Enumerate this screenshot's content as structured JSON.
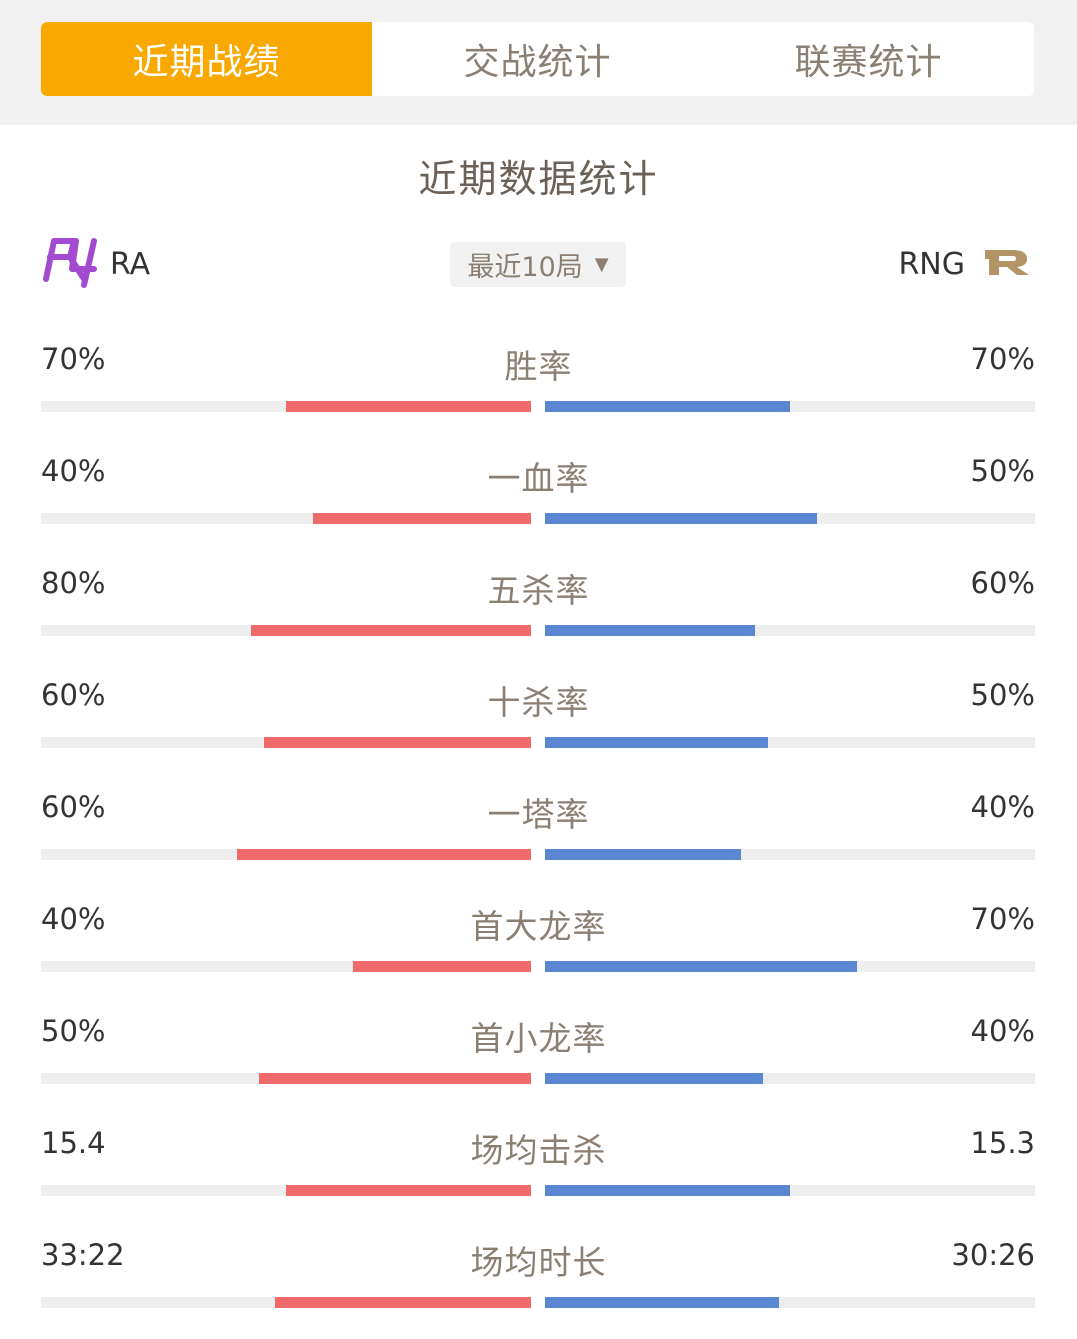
{
  "tabs": [
    {
      "label": "近期战绩",
      "active": true
    },
    {
      "label": "交战统计",
      "active": false
    },
    {
      "label": "联赛统计",
      "active": false
    }
  ],
  "section_title": "近期数据统计",
  "team_left": {
    "name": "RA",
    "logo_icon": "ra-logo-icon",
    "color": "#a24bd1"
  },
  "team_right": {
    "name": "RNG",
    "logo_icon": "rng-logo-icon",
    "color": "#b39467"
  },
  "range_select": {
    "value": "最近10局",
    "icon": "caret-down-icon"
  },
  "colors": {
    "accent": "#f9a800",
    "left_bar": "#ef6b6b",
    "right_bar": "#5b86d2",
    "track": "#eeeeee"
  },
  "stats": [
    {
      "label": "胜率",
      "left": "70%",
      "right": "70%",
      "left_fill": 0.5,
      "right_fill": 0.5
    },
    {
      "label": "一血率",
      "left": "40%",
      "right": "50%",
      "left_fill": 0.445,
      "right_fill": 0.555
    },
    {
      "label": "五杀率",
      "left": "80%",
      "right": "60%",
      "left_fill": 0.571,
      "right_fill": 0.429
    },
    {
      "label": "十杀率",
      "left": "60%",
      "right": "50%",
      "left_fill": 0.545,
      "right_fill": 0.455
    },
    {
      "label": "一塔率",
      "left": "60%",
      "right": "40%",
      "left_fill": 0.6,
      "right_fill": 0.4
    },
    {
      "label": "首大龙率",
      "left": "40%",
      "right": "70%",
      "left_fill": 0.364,
      "right_fill": 0.636
    },
    {
      "label": "首小龙率",
      "left": "50%",
      "right": "40%",
      "left_fill": 0.555,
      "right_fill": 0.445
    },
    {
      "label": "场均击杀",
      "left": "15.4",
      "right": "15.3",
      "left_fill": 0.5,
      "right_fill": 0.5
    },
    {
      "label": "场均时长",
      "left": "33:22",
      "right": "30:26",
      "left_fill": 0.523,
      "right_fill": 0.477
    }
  ]
}
